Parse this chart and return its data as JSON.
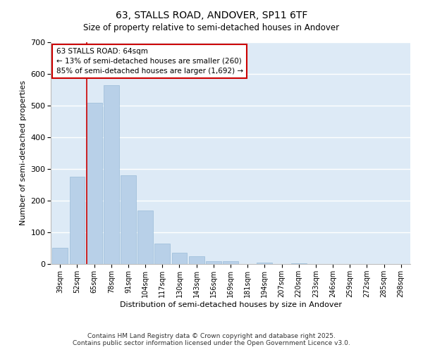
{
  "title": "63, STALLS ROAD, ANDOVER, SP11 6TF",
  "subtitle": "Size of property relative to semi-detached houses in Andover",
  "xlabel": "Distribution of semi-detached houses by size in Andover",
  "ylabel": "Number of semi-detached properties",
  "categories": [
    "39sqm",
    "52sqm",
    "65sqm",
    "78sqm",
    "91sqm",
    "104sqm",
    "117sqm",
    "130sqm",
    "143sqm",
    "156sqm",
    "169sqm",
    "181sqm",
    "194sqm",
    "207sqm",
    "220sqm",
    "233sqm",
    "246sqm",
    "259sqm",
    "272sqm",
    "285sqm",
    "298sqm"
  ],
  "values": [
    52,
    275,
    510,
    565,
    280,
    168,
    65,
    35,
    25,
    10,
    10,
    0,
    4,
    0,
    2,
    0,
    0,
    0,
    0,
    0,
    0
  ],
  "bar_color": "#b8d0e8",
  "bar_edge_color": "#9abcd8",
  "bg_color": "#ddeaf6",
  "grid_color": "#ffffff",
  "vline_color": "#cc0000",
  "annotation_title": "63 STALLS ROAD: 64sqm",
  "annotation_line1": "← 13% of semi-detached houses are smaller (260)",
  "annotation_line2": "85% of semi-detached houses are larger (1,692) →",
  "annotation_box_color": "#ffffff",
  "annotation_box_edge": "#cc0000",
  "footer_line1": "Contains HM Land Registry data © Crown copyright and database right 2025.",
  "footer_line2": "Contains public sector information licensed under the Open Government Licence v3.0.",
  "ylim": [
    0,
    700
  ],
  "yticks": [
    0,
    100,
    200,
    300,
    400,
    500,
    600,
    700
  ],
  "fig_bg": "#ffffff"
}
